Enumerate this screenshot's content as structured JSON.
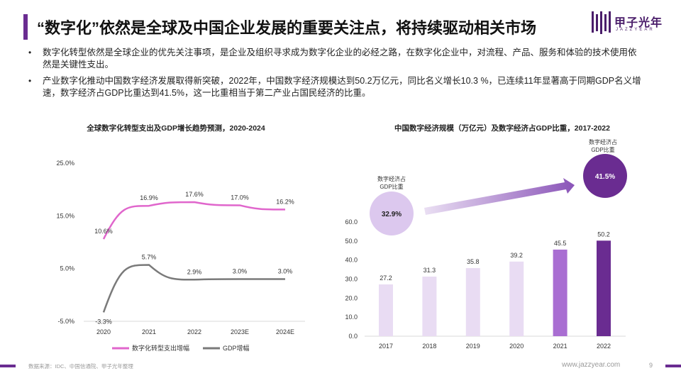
{
  "title": "“数字化”依然是全球及中国企业发展的重要关注点，将持续驱动相关市场",
  "logo": {
    "name": "甲子光年",
    "sub": "JAZZYEAR"
  },
  "bullets": [
    "数字化转型依然是全球企业的优先关注事项，是企业及组织寻求成为数字化企业的必经之路，在数字化企业中，对流程、产品、服务和体验的技术使用依然是关键性支出。",
    "产业数字化推动中国数字经济发展取得新突破，2022年，中国数字经济规模达到50.2万亿元，同比名义增长10.3 %，已连续11年显著高于同期GDP名义增速，数字经济占GDP比重达到41.5%，这一比重相当于第二产业占国民经济的比重。"
  ],
  "bullet_marker": "•",
  "chart_data": [
    {
      "type": "line",
      "title": "全球数字化转型支出及GDP增长趋势预测，2020-2024",
      "categories": [
        "2020",
        "2021",
        "2022",
        "2023E",
        "2024E"
      ],
      "series": [
        {
          "name": "数字化转型支出增幅",
          "values": [
            10.6,
            16.9,
            17.6,
            17.0,
            16.2
          ],
          "labels": [
            "10.6%",
            "16.9%",
            "17.6%",
            "17.0%",
            "16.2%"
          ],
          "color": "#e066cc"
        },
        {
          "name": "GDP增幅",
          "values": [
            -3.3,
            5.7,
            2.9,
            3.0,
            3.0
          ],
          "labels": [
            "-3.3%",
            "5.7%",
            "2.9%",
            "3.0%",
            "3.0%"
          ],
          "color": "#7a7a7a"
        }
      ],
      "yticks": [
        -5.0,
        5.0,
        15.0,
        25.0
      ],
      "ytick_labels": [
        "-5.0%",
        "5.0%",
        "15.0%",
        "25.0%"
      ],
      "ylim": [
        -5,
        25
      ],
      "legend": "bottom"
    },
    {
      "type": "bar",
      "title": "中国数字经济规模（万亿元）及数字经济占GDP比重，2017-2022",
      "categories": [
        "2017",
        "2018",
        "2019",
        "2020",
        "2021",
        "2022"
      ],
      "values": [
        27.2,
        31.3,
        35.8,
        39.2,
        45.5,
        50.2
      ],
      "labels": [
        "27.2",
        "31.3",
        "35.8",
        "39.2",
        "45.5",
        "50.2"
      ],
      "bar_colors": [
        "#e9dcf3",
        "#e9dcf3",
        "#e9dcf3",
        "#e9dcf3",
        "#a96ed2",
        "#6a2c91"
      ],
      "yticks": [
        0,
        10,
        20,
        30,
        40,
        50,
        60
      ],
      "ytick_labels": [
        "0.0",
        "10.0",
        "20.0",
        "30.0",
        "40.0",
        "50.0",
        "60.0"
      ],
      "ylim": [
        0,
        60
      ],
      "annotations": [
        {
          "label": "数字经济占GDP比重",
          "line1": "数字经济占",
          "line2": "GDP比重",
          "value": "32.9%",
          "year": "2017",
          "color": "#dcc8ee"
        },
        {
          "label": "数字经济占GDP比重",
          "line1": "数字经济占",
          "line2": "GDP比重",
          "value": "41.5%",
          "year": "2022",
          "color": "#6a2c91"
        }
      ]
    }
  ],
  "footer": {
    "source": "数据来源：IDC、中国信通院、甲子光年整理",
    "url": "www.jazzyear.com",
    "page": "9"
  }
}
